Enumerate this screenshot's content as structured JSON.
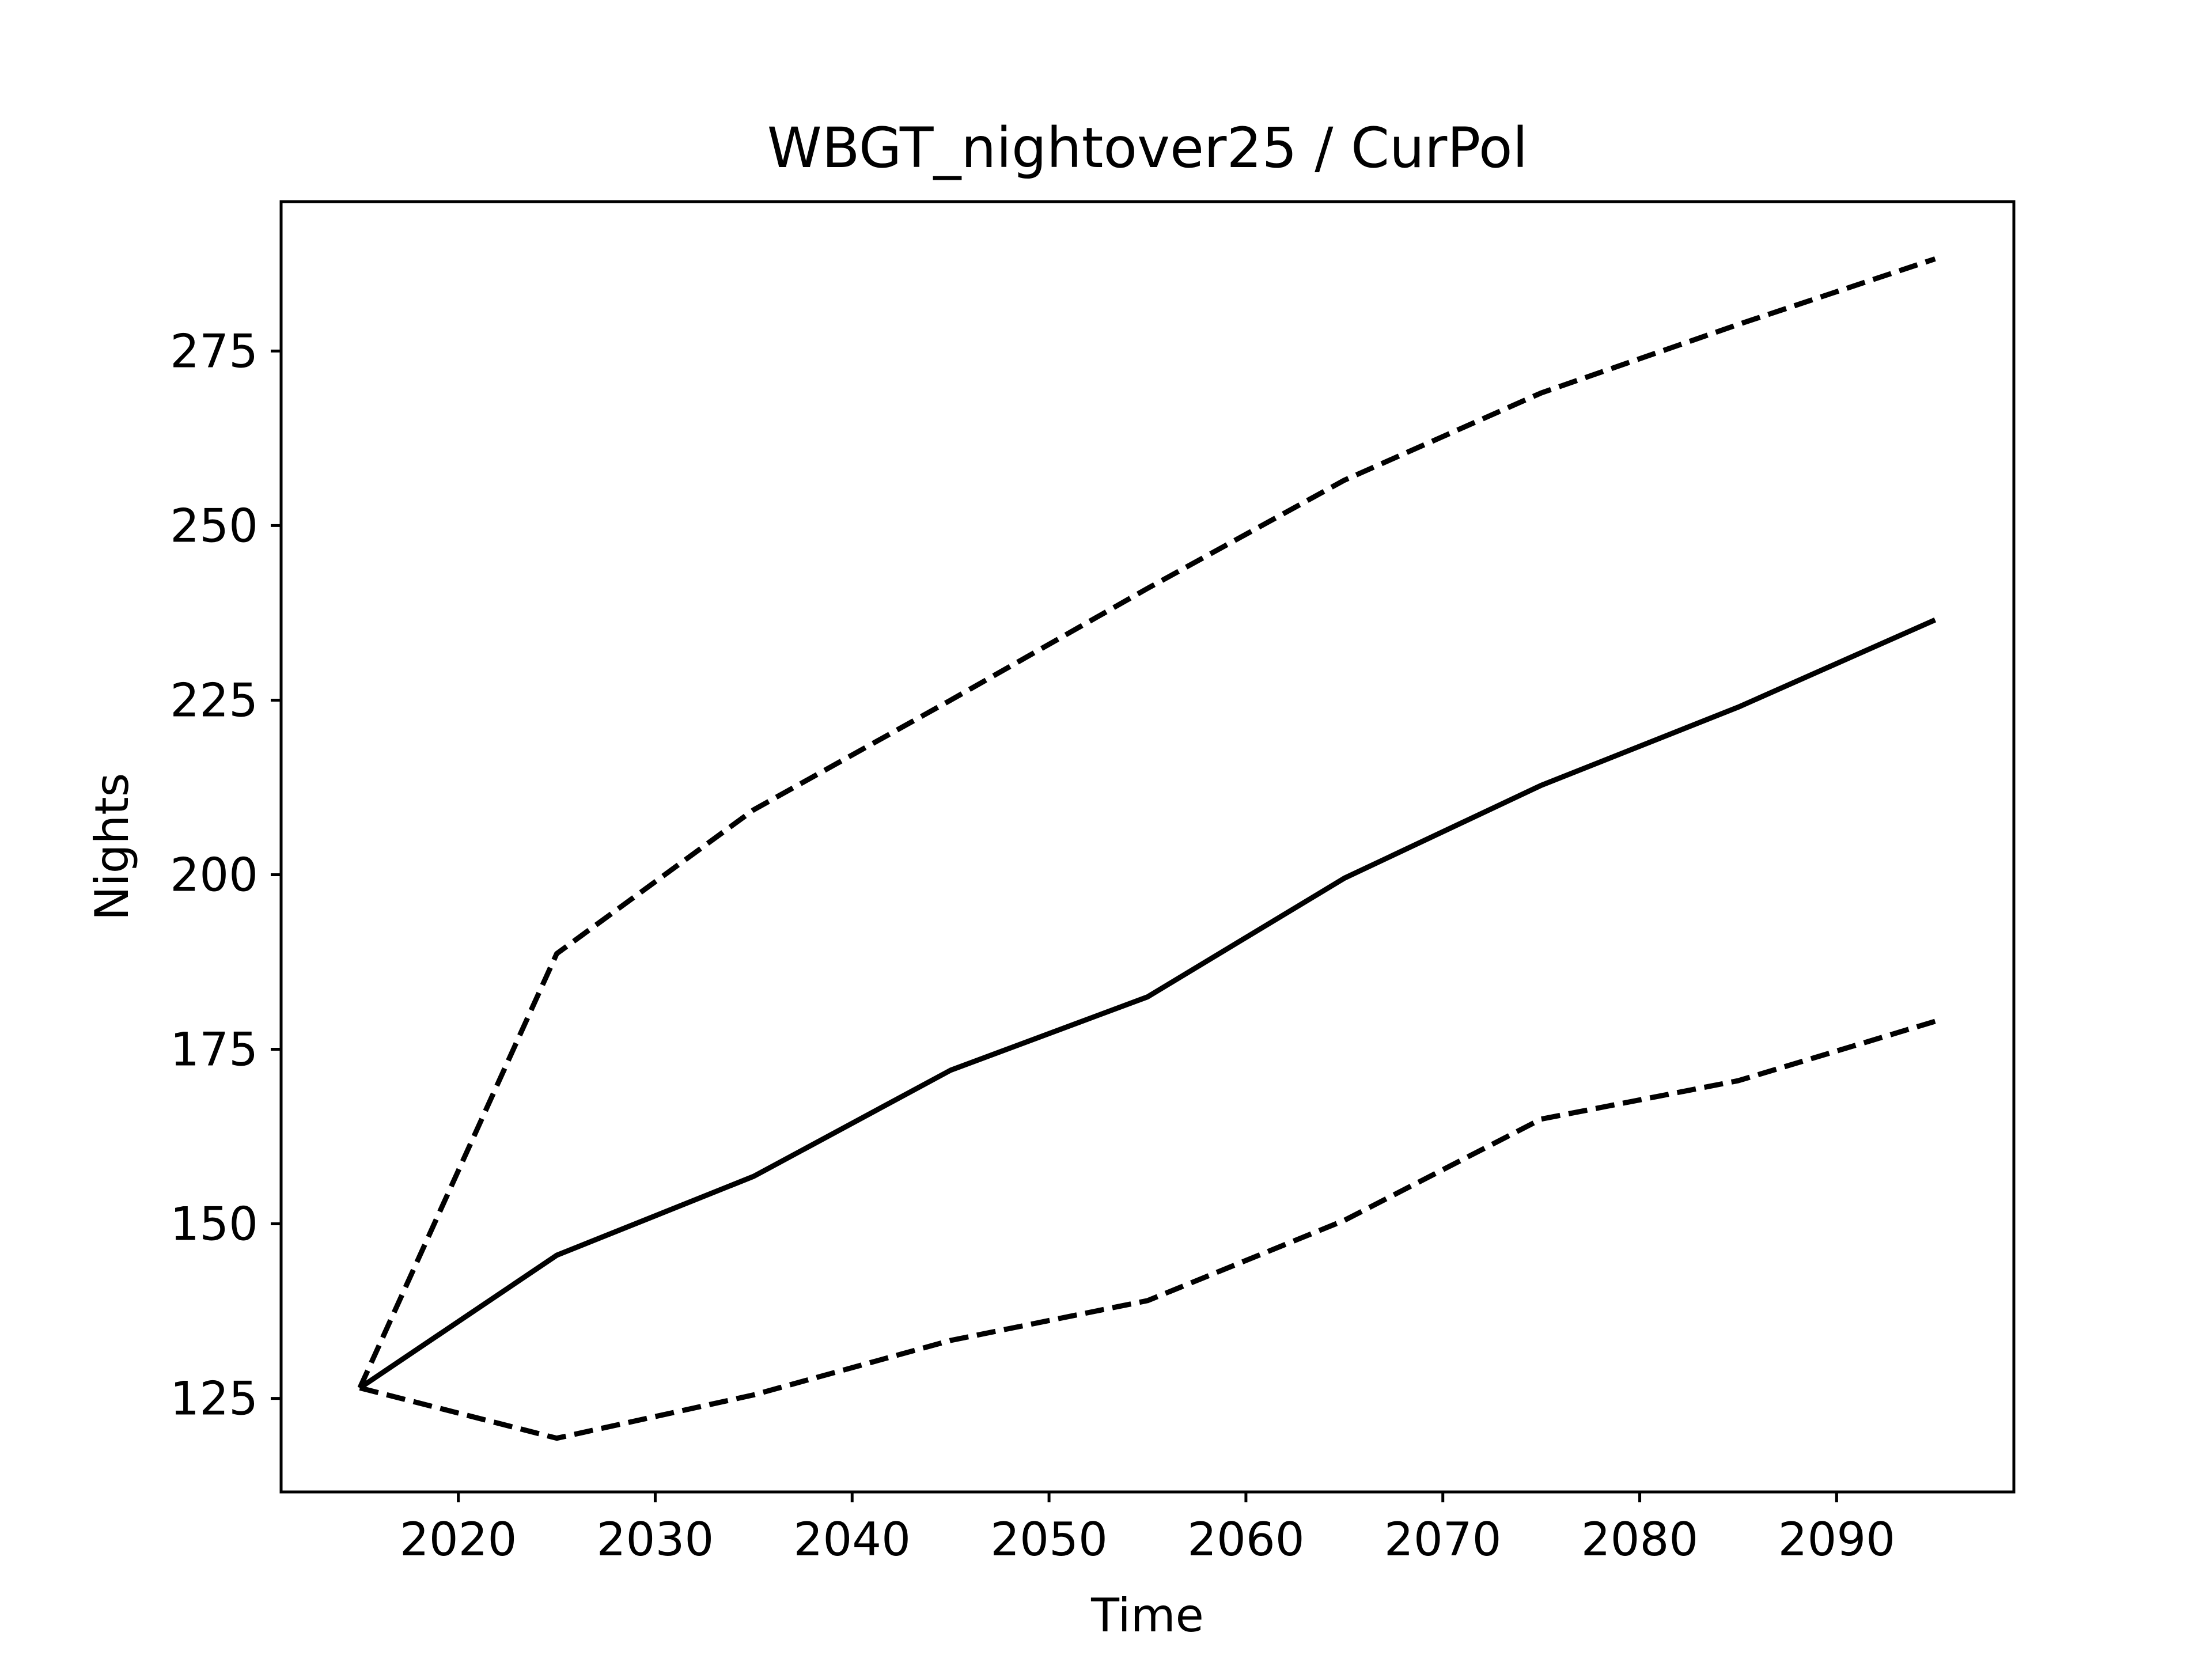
{
  "chart_data": {
    "type": "line",
    "title": "WBGT_nightover25 / CurPol",
    "xlabel": "Time",
    "ylabel": "Nights",
    "xlim": [
      2011,
      2099
    ],
    "ylim": [
      111.6,
      296.4
    ],
    "xticks": [
      2020,
      2030,
      2040,
      2050,
      2060,
      2070,
      2080,
      2090
    ],
    "yticks": [
      125,
      150,
      175,
      200,
      225,
      250,
      275
    ],
    "grid": false,
    "legend": "none",
    "x": [
      2015,
      2025,
      2035,
      2045,
      2055,
      2065,
      2075,
      2085,
      2095
    ],
    "series": [
      {
        "style": "solid",
        "color": "#000000",
        "values": [
          126.5,
          145.5,
          156.8,
          172.0,
          182.5,
          199.5,
          212.8,
          224.0,
          236.5
        ]
      },
      {
        "style": "dashed",
        "color": "#000000",
        "values": [
          126.5,
          188.7,
          209.3,
          225.0,
          241.0,
          256.5,
          269.0,
          278.8,
          288.2
        ]
      },
      {
        "style": "dashed",
        "color": "#000000",
        "values": [
          126.5,
          119.3,
          125.5,
          133.3,
          139.0,
          150.5,
          165.0,
          170.5,
          179.0
        ]
      }
    ]
  }
}
